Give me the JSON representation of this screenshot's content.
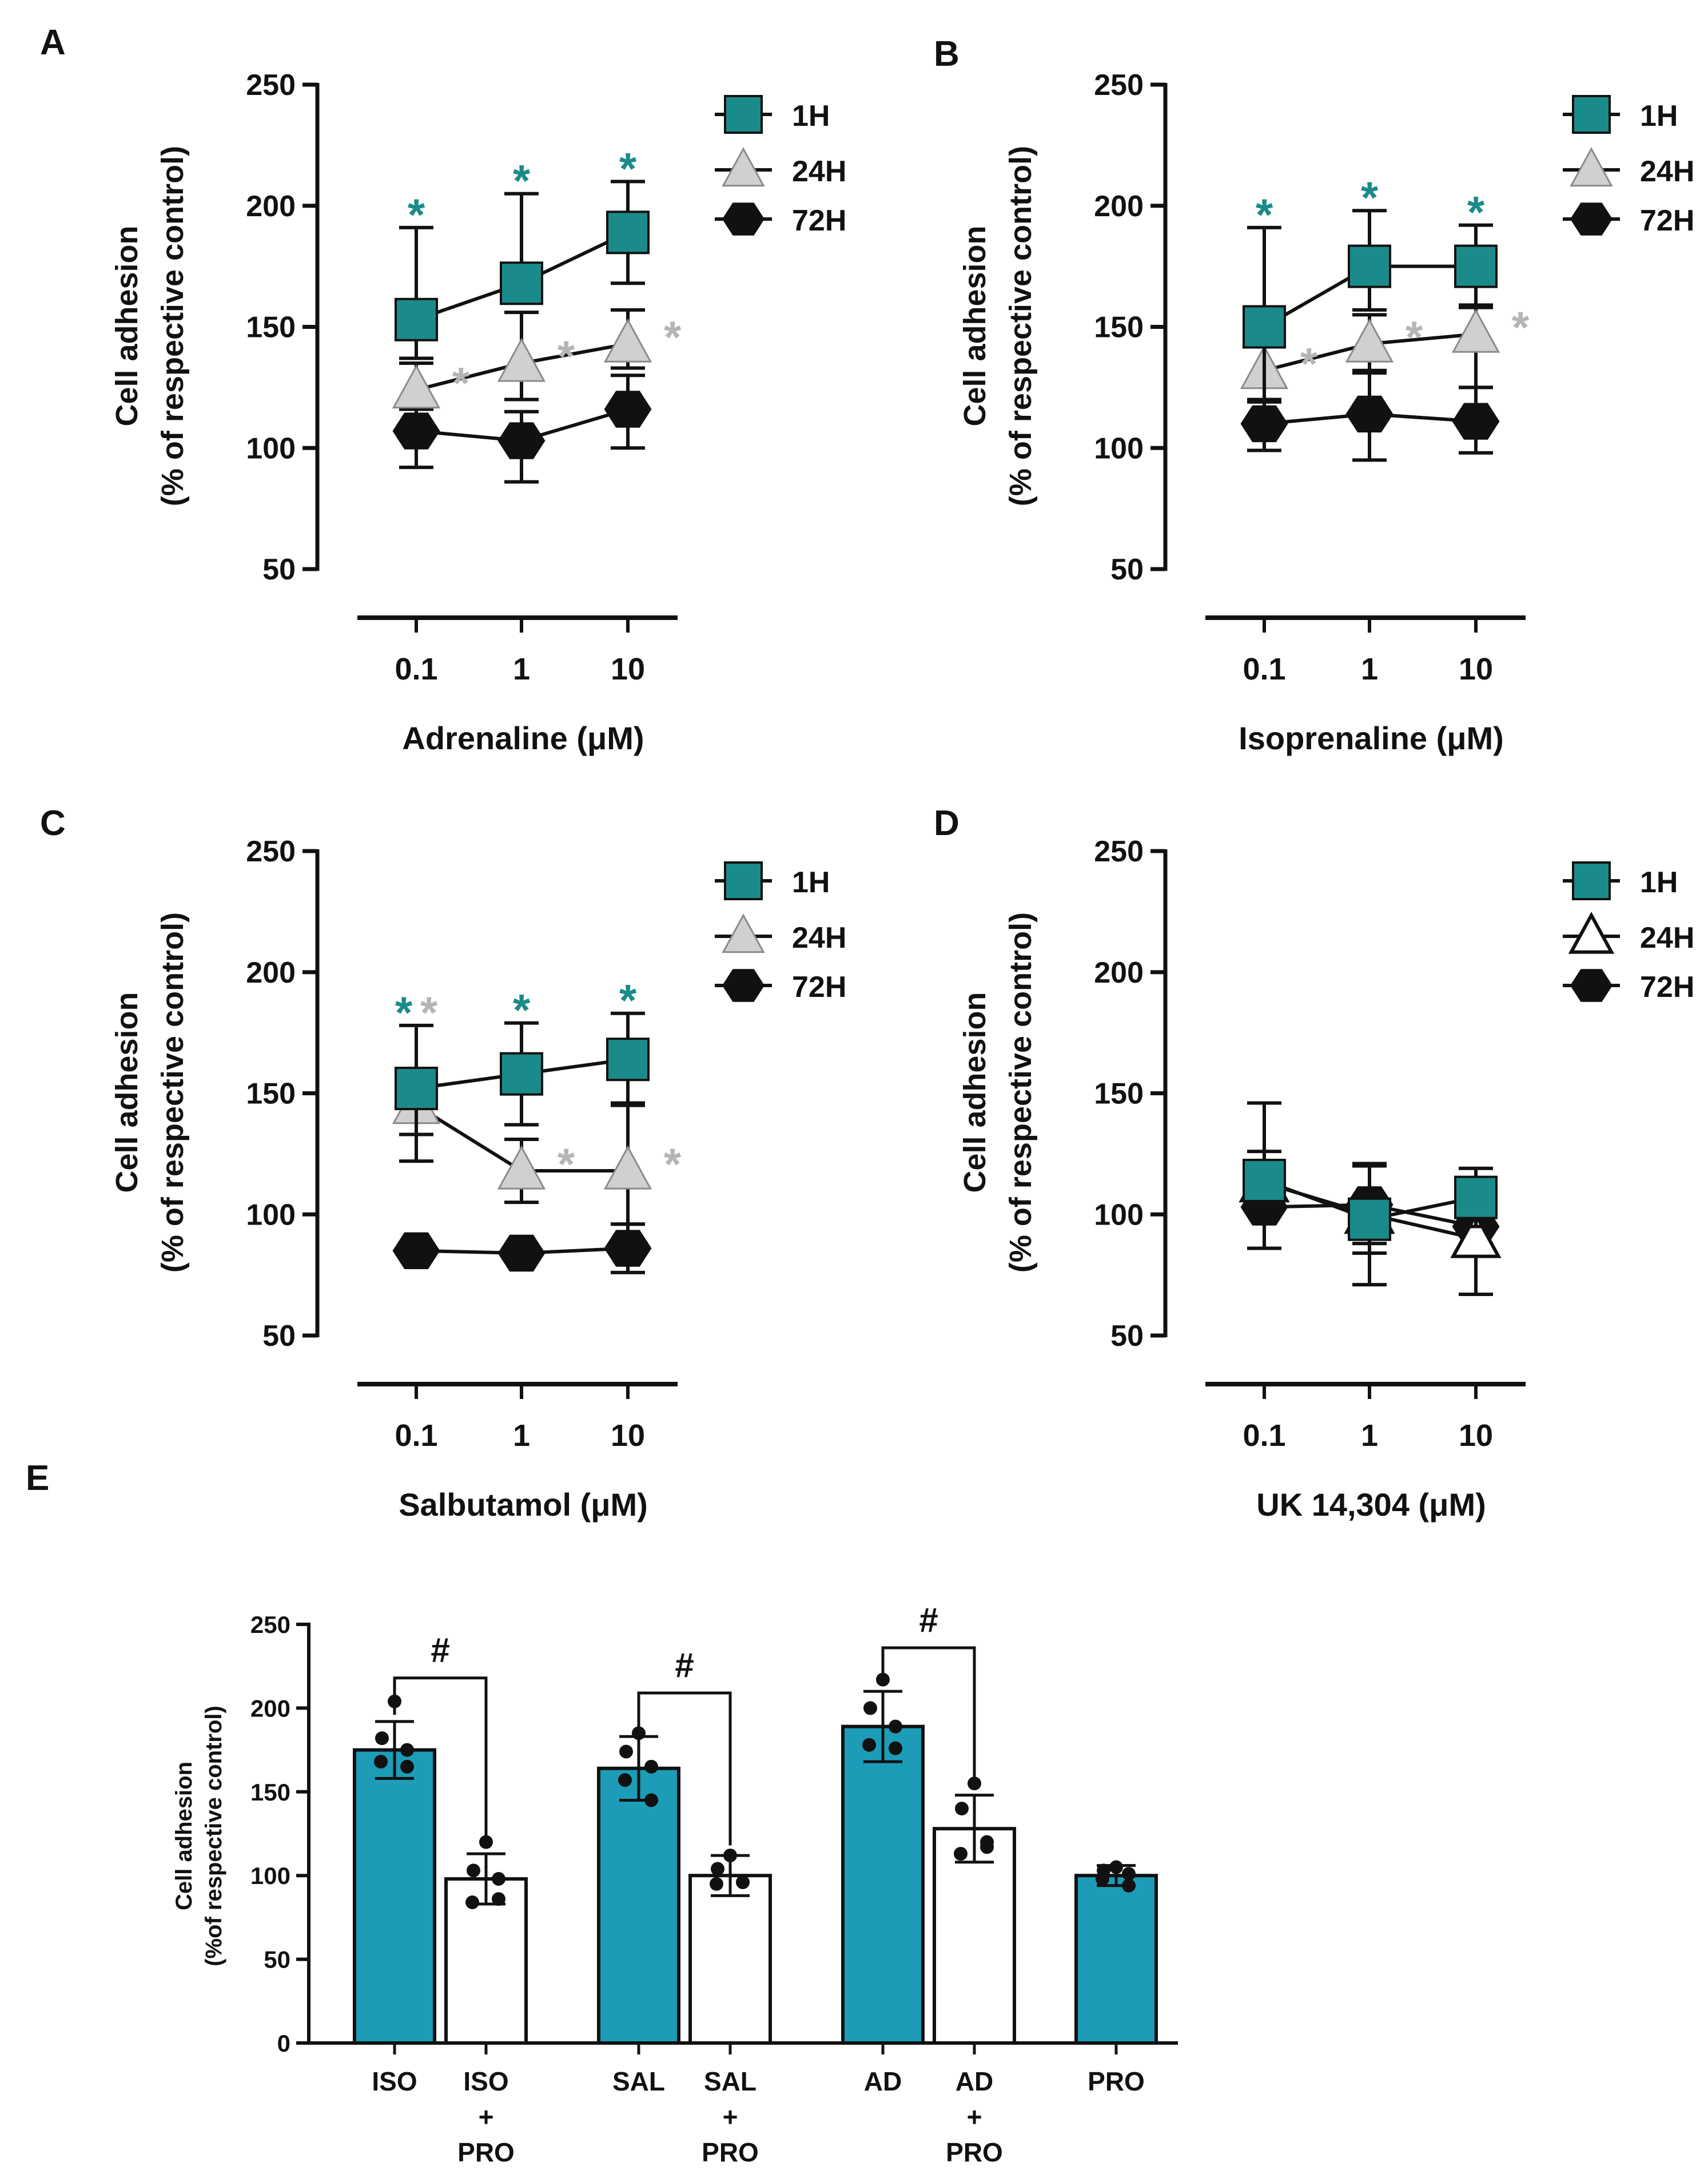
{
  "colors": {
    "teal_line": "#1b8a8a",
    "teal_bar": "#1c9cb7",
    "light_gray": "#d0d0d0",
    "sig_gray": "#b5b5b5",
    "black": "#111111",
    "white": "#ffffff"
  },
  "chart_data": [
    {
      "panel": "A",
      "type": "line",
      "ylabel_line1": "Cell adhesion",
      "ylabel_line2": "(% of respective control)",
      "xlabel": "Adrenaline (μM)",
      "categories": [
        "0.1",
        "1",
        "10"
      ],
      "ylim": [
        50,
        250
      ],
      "yticks": [
        "50",
        "100",
        "150",
        "200",
        "250"
      ],
      "legend_position": "top-right",
      "series": [
        {
          "name": "1H",
          "marker": "square",
          "color": "#1b8a8a",
          "values": [
            153,
            168,
            189
          ],
          "err_up": [
            38,
            37,
            21
          ],
          "err_down": [
            16,
            8,
            21
          ]
        },
        {
          "name": "24H",
          "marker": "triangle",
          "color": "#d0d0d0",
          "values": [
            124,
            135,
            143
          ],
          "err_up": [
            11,
            21,
            14
          ],
          "err_down": [
            8,
            15,
            10
          ]
        },
        {
          "name": "72H",
          "marker": "hexagon",
          "color": "#111111",
          "values": [
            107,
            103,
            116
          ],
          "err_up": [
            9,
            12,
            14
          ],
          "err_down": [
            15,
            17,
            16
          ]
        }
      ],
      "significance": [
        {
          "series": "1H",
          "symbol": "*",
          "color": "#1b8a8a",
          "points": [
            0,
            1,
            2
          ]
        },
        {
          "series": "24H",
          "symbol": "*",
          "color": "#b5b5b5",
          "points": [
            0,
            1,
            2
          ]
        }
      ]
    },
    {
      "panel": "B",
      "type": "line",
      "ylabel_line1": "Cell adhesion",
      "ylabel_line2": "(% of respective control)",
      "xlabel": "Isoprenaline (μM)",
      "categories": [
        "0.1",
        "1",
        "10"
      ],
      "ylim": [
        50,
        250
      ],
      "yticks": [
        "50",
        "100",
        "150",
        "200",
        "250"
      ],
      "legend_position": "top-right",
      "series": [
        {
          "name": "1H",
          "marker": "square",
          "color": "#1b8a8a",
          "values": [
            150,
            175,
            175
          ],
          "err_up": [
            41,
            23,
            17
          ],
          "err_down": [
            30,
            18,
            17
          ]
        },
        {
          "name": "24H",
          "marker": "triangle",
          "color": "#d0d0d0",
          "values": [
            132,
            143,
            147
          ],
          "err_up": [
            12,
            12,
            12
          ],
          "err_down": [
            12,
            12,
            22
          ]
        },
        {
          "name": "72H",
          "marker": "hexagon",
          "color": "#111111",
          "values": [
            110,
            114,
            111
          ],
          "err_up": [
            9,
            18,
            14
          ],
          "err_down": [
            11,
            19,
            13
          ]
        }
      ],
      "significance": [
        {
          "series": "1H",
          "symbol": "*",
          "color": "#1b8a8a",
          "points": [
            0,
            1,
            2
          ]
        },
        {
          "series": "24H",
          "symbol": "*",
          "color": "#b5b5b5",
          "points": [
            0,
            1,
            2
          ]
        }
      ]
    },
    {
      "panel": "C",
      "type": "line",
      "ylabel_line1": "Cell adhesion",
      "ylabel_line2": "(% of respective control)",
      "xlabel": "Salbutamol (μM)",
      "categories": [
        "0.1",
        "1",
        "10"
      ],
      "ylim": [
        50,
        250
      ],
      "yticks": [
        "50",
        "100",
        "150",
        "200",
        "250"
      ],
      "legend_position": "top-right",
      "series": [
        {
          "name": "1H",
          "marker": "square",
          "color": "#1b8a8a",
          "values": [
            152,
            158,
            164
          ],
          "err_up": [
            26,
            21,
            19
          ],
          "err_down": [
            30,
            21,
            19
          ]
        },
        {
          "name": "24H",
          "marker": "triangle",
          "color": "#d0d0d0",
          "values": [
            145,
            118,
            118
          ],
          "err_up": [
            12,
            13,
            28
          ],
          "err_down": [
            12,
            13,
            22
          ]
        },
        {
          "name": "72H",
          "marker": "hexagon",
          "color": "#111111",
          "values": [
            85,
            84,
            86
          ],
          "err_up": [
            0,
            0,
            10
          ],
          "err_down": [
            0,
            0,
            10
          ]
        }
      ],
      "significance": [
        {
          "series": "1H",
          "symbol": "*",
          "color": "#1b8a8a",
          "points": [
            0,
            1,
            2
          ]
        },
        {
          "series": "24H",
          "symbol": "*",
          "color": "#b5b5b5",
          "points": [
            0,
            1,
            2
          ]
        }
      ]
    },
    {
      "panel": "D",
      "type": "line",
      "ylabel_line1": "Cell adhesion",
      "ylabel_line2": "(% of respective control)",
      "xlabel": "UK 14,304 (μM)",
      "categories": [
        "0.1",
        "1",
        "10"
      ],
      "ylim": [
        50,
        250
      ],
      "yticks": [
        "50",
        "100",
        "150",
        "200",
        "250"
      ],
      "legend_position": "top-right",
      "series": [
        {
          "name": "1H",
          "marker": "square",
          "color": "#1b8a8a",
          "values": [
            114,
            98,
            107
          ],
          "err_up": [
            32,
            23,
            12
          ],
          "err_down": [
            13,
            14,
            12
          ]
        },
        {
          "name": "24H",
          "marker": "triangle-open",
          "color": "#ffffff",
          "values": [
            113,
            100,
            90
          ],
          "err_up": [
            13,
            20,
            22
          ],
          "err_down": [
            13,
            29,
            23
          ]
        },
        {
          "name": "72H",
          "marker": "hexagon",
          "color": "#111111",
          "values": [
            103,
            104,
            95
          ],
          "err_up": [
            0,
            16,
            15
          ],
          "err_down": [
            17,
            16,
            12
          ]
        }
      ],
      "significance": []
    },
    {
      "panel": "E",
      "type": "bar",
      "ylabel_line1": "Cell adhesion",
      "ylabel_line2": "(%of respective control)",
      "ylim": [
        0,
        250
      ],
      "yticks": [
        "0",
        "50",
        "100",
        "150",
        "200",
        "250"
      ],
      "bars": [
        {
          "label": [
            "ISO"
          ],
          "value": 175,
          "err": 17,
          "fill": "teal",
          "points": [
            204,
            182,
            175,
            168,
            165
          ]
        },
        {
          "label": [
            "ISO",
            "+",
            "PRO"
          ],
          "value": 98,
          "err": 15,
          "fill": "white",
          "points": [
            120,
            103,
            98,
            84,
            86
          ]
        },
        {
          "label": [
            "SAL"
          ],
          "value": 164,
          "err": 19,
          "fill": "teal",
          "points": [
            185,
            174,
            165,
            157,
            145
          ]
        },
        {
          "label": [
            "SAL",
            "+",
            "PRO"
          ],
          "value": 100,
          "err": 12,
          "fill": "white",
          "points": [
            112,
            104,
            96,
            95,
            96
          ]
        },
        {
          "label": [
            "AD"
          ],
          "value": 189,
          "err": 21,
          "fill": "teal",
          "points": [
            217,
            200,
            189,
            178,
            176
          ]
        },
        {
          "label": [
            "AD",
            "+",
            "PRO"
          ],
          "value": 128,
          "err": 20,
          "fill": "white",
          "points": [
            155,
            140,
            120,
            113,
            117
          ]
        },
        {
          "label": [
            "PRO"
          ],
          "value": 100,
          "err": 6,
          "fill": "teal",
          "points": [
            105,
            103,
            101,
            98,
            94
          ]
        }
      ],
      "brackets": [
        {
          "from": 0,
          "to": 1,
          "symbol": "#"
        },
        {
          "from": 2,
          "to": 3,
          "symbol": "#"
        },
        {
          "from": 4,
          "to": 5,
          "symbol": "#"
        }
      ]
    }
  ]
}
